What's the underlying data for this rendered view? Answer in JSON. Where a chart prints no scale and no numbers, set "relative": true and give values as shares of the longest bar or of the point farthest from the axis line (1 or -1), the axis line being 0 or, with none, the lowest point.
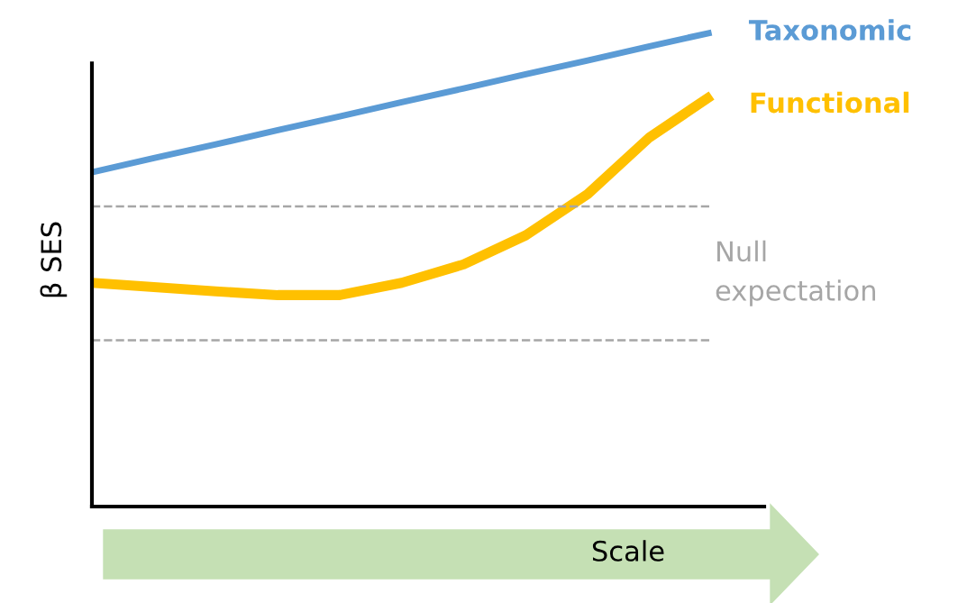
{
  "chart_data": {
    "type": "line",
    "relative": true,
    "xlabel": "Scale",
    "ylabel": "β SES",
    "categories": [
      null,
      null,
      null,
      null,
      null,
      null,
      null,
      null,
      null,
      null,
      null
    ],
    "series": [
      {
        "name": "Taxonomic",
        "color": "#5b9bd5",
        "values": [
          0.705,
          0.735,
          0.764,
          0.794,
          0.823,
          0.853,
          0.882,
          0.912,
          0.941,
          0.971,
          1.0
        ]
      },
      {
        "name": "Functional",
        "color": "#ffc000",
        "values": [
          0.472,
          0.463,
          0.454,
          0.446,
          0.446,
          0.472,
          0.511,
          0.572,
          0.659,
          0.779,
          0.867
        ]
      }
    ],
    "ref_lines": [
      {
        "axis": "y",
        "value": 0.633,
        "color": "#a6a6a6",
        "line_style": "dashed"
      },
      {
        "axis": "y",
        "value": 0.351,
        "color": "#a6a6a6",
        "line_style": "dashed"
      }
    ],
    "annotations": [
      "Null expectation"
    ],
    "legend": false,
    "marker": "none",
    "line_style": "solid"
  }
}
